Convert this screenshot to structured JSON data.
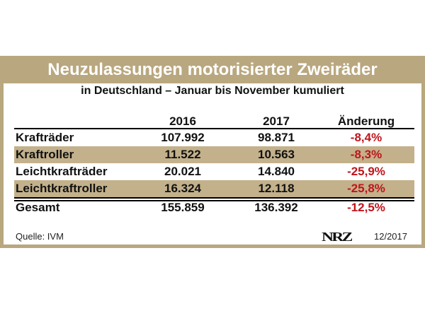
{
  "title": "Neuzulassungen motorisierter Zweiräder",
  "subtitle": "in Deutschland – Januar bis November kumuliert",
  "colors": {
    "frame": "#b9a77f",
    "band": "#c3b18b",
    "negative": "#c0141c"
  },
  "chart_data": {
    "type": "table",
    "columns": [
      "",
      "2016",
      "2017",
      "Änderung"
    ],
    "rows": [
      {
        "label": "Krafträder",
        "y2016": "107.992",
        "y2017": "98.871",
        "change": "-8,4%"
      },
      {
        "label": "Kraftroller",
        "y2016": "11.522",
        "y2017": "10.563",
        "change": "-8,3%"
      },
      {
        "label": "Leichtkrafträder",
        "y2016": "20.021",
        "y2017": "14.840",
        "change": "-25,9%"
      },
      {
        "label": "Leichtkraftroller",
        "y2016": "16.324",
        "y2017": "12.118",
        "change": "-25,8%"
      }
    ],
    "total": {
      "label": "Gesamt",
      "y2016": "155.859",
      "y2017": "136.392",
      "change": "-12,5%"
    }
  },
  "footer": {
    "source": "Quelle: IVM",
    "logo": "NRZ",
    "date": "12/2017"
  }
}
